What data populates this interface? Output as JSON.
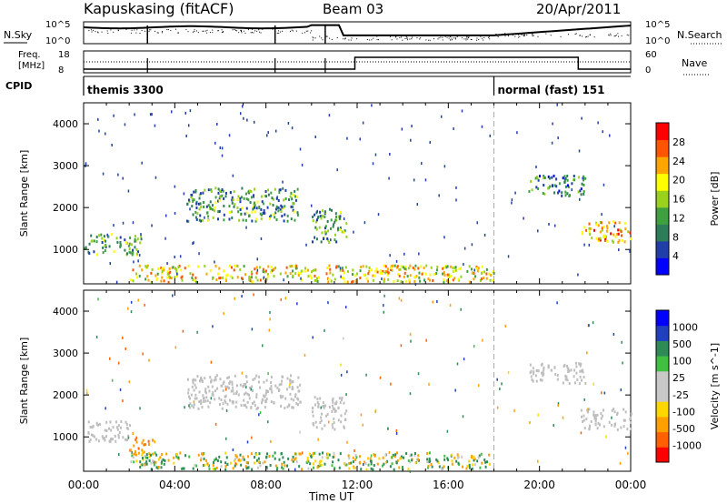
{
  "header": {
    "station": "Kapuskasing (fitACF)",
    "beam": "Beam 03",
    "date": "20/Apr/2011"
  },
  "noise_panel": {
    "left_label": "N.Sky",
    "right_label": "N.Search",
    "left_ticks": [
      "10^5",
      "10^0"
    ],
    "right_ticks": [
      "10^5",
      "10^0"
    ]
  },
  "freq_panel": {
    "left_label_1": "Freq.",
    "left_label_2": "[MHz]",
    "right_label": "Nave",
    "left_ticks": [
      "18",
      "8"
    ],
    "right_ticks": [
      "60",
      "0"
    ]
  },
  "cpid": {
    "label": "CPID",
    "segments": [
      {
        "name": "themis 3300",
        "start_hour": 0,
        "end_hour": 18.0
      },
      {
        "name": "normal (fast) 151",
        "start_hour": 18.0,
        "end_hour": 24
      }
    ]
  },
  "colors": {
    "power_scale": [
      "#0000ff",
      "#1f3ea8",
      "#2e7d5a",
      "#3fa03f",
      "#9ad11f",
      "#ffff00",
      "#ffa500",
      "#ff5500",
      "#ff0000"
    ],
    "velocity_scale": [
      "#ff0000",
      "#ff6000",
      "#ffa000",
      "#ffd700",
      "#c8c8c8",
      "#c8c8c8",
      "#40c040",
      "#2e8b57",
      "#2040c0",
      "#0000ff"
    ],
    "ground_scatter": "#bebebe"
  },
  "chart_data": [
    {
      "type": "heatmap",
      "panel": "power",
      "ylabel": "Slant Range [km]",
      "yticks": [
        "1000",
        "2000",
        "3000",
        "4000"
      ],
      "ylim": [
        180,
        4500
      ],
      "colorbar_label": "Power [dB]",
      "colorbar_ticks": [
        "4",
        "8",
        "12",
        "16",
        "20",
        "24",
        "28"
      ],
      "zlim": [
        0,
        30
      ],
      "echo_regions": [
        {
          "t0": 0.0,
          "t1": 2.5,
          "r0": 900,
          "r1": 1400,
          "level": 8
        },
        {
          "t0": 4.5,
          "t1": 9.5,
          "r0": 1700,
          "r1": 2500,
          "level": 8
        },
        {
          "t0": 10.0,
          "t1": 11.5,
          "r0": 1200,
          "r1": 2000,
          "level": 8
        },
        {
          "t0": 2.0,
          "t1": 18.0,
          "r0": 250,
          "r1": 650,
          "level": 16
        },
        {
          "t0": 19.5,
          "t1": 22.0,
          "r0": 2300,
          "r1": 2800,
          "level": 6
        },
        {
          "t0": 21.8,
          "t1": 24.0,
          "r0": 1200,
          "r1": 1700,
          "level": 18
        }
      ]
    },
    {
      "type": "heatmap",
      "panel": "velocity",
      "ylabel": "Slant Range [km]",
      "yticks": [
        "1000",
        "2000",
        "3000",
        "4000"
      ],
      "ylim": [
        180,
        4500
      ],
      "colorbar_label": "Velocity [m s^-1]",
      "colorbar_ticks": [
        "-1000",
        "-500",
        "-100",
        "-25",
        "25",
        "100",
        "500",
        "1000"
      ],
      "echo_regions": [
        {
          "t0": 0.0,
          "t1": 2.0,
          "r0": 900,
          "r1": 1400,
          "ground": true
        },
        {
          "t0": 2.0,
          "t1": 3.0,
          "r0": 600,
          "r1": 1000,
          "velocity": -400
        },
        {
          "t0": 4.5,
          "t1": 9.5,
          "r0": 1700,
          "r1": 2500,
          "ground": true
        },
        {
          "t0": 10.0,
          "t1": 11.5,
          "r0": 1200,
          "r1": 2000,
          "ground": true
        },
        {
          "t0": 2.0,
          "t1": 18.0,
          "r0": 250,
          "r1": 650,
          "velocity": 50
        },
        {
          "t0": 19.5,
          "t1": 22.0,
          "r0": 2300,
          "r1": 2800,
          "ground": true
        },
        {
          "t0": 21.8,
          "t1": 24.0,
          "r0": 1200,
          "r1": 1700,
          "ground": true
        }
      ]
    }
  ],
  "xaxis": {
    "label": "Time UT",
    "ticks": [
      "00:00",
      "04:00",
      "08:00",
      "12:00",
      "16:00",
      "20:00",
      "00:00"
    ],
    "xlim_hours": [
      0,
      24
    ]
  }
}
